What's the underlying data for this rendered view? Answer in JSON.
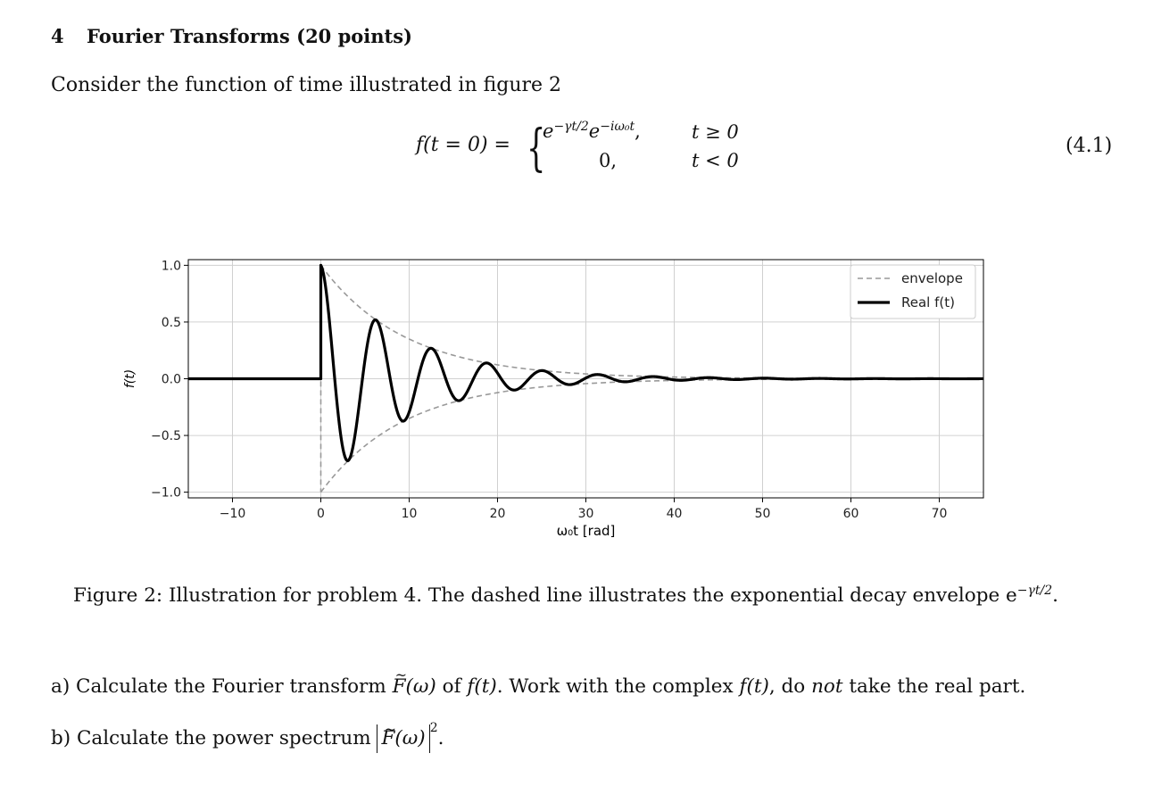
{
  "section": {
    "number": "4",
    "title": "Fourier Transforms (20 points)"
  },
  "intro": "Consider the function of time illustrated in figure 2",
  "equation": {
    "lhs": "f(t = 0) =",
    "case1_expr": "e",
    "case1_exp1": "−γt/2",
    "case1_mid": "e",
    "case1_exp2": "−iω₀t",
    "case1_tail": ",",
    "case1_cond": "t ≥ 0",
    "case2_expr": "0,",
    "case2_cond": "t < 0",
    "number": "(4.1)"
  },
  "caption": {
    "text": "Figure 2: Illustration for problem 4. The dashed line illustrates the exponential decay envelope e",
    "exp": "−γt/2",
    "end": "."
  },
  "part_a": {
    "prefix": "a) Calculate the Fourier transform ",
    "F": "F",
    "arg": "(ω)",
    "mid": " of ",
    "f": "f(t)",
    "mid2": ". Work with the complex ",
    "f2": "f(t)",
    "mid3": ", do ",
    "not": "not",
    "suffix": " take the real part."
  },
  "part_b": {
    "prefix": "b) Calculate the power spectrum ",
    "F": "F",
    "arg": "(ω)",
    "exp": "2",
    "suffix": "."
  },
  "chart_data": {
    "type": "line",
    "xlabel": "ω₀t [rad]",
    "ylabel": "f(t)",
    "xlim": [
      -15,
      75
    ],
    "ylim": [
      -1.05,
      1.05
    ],
    "xticks": [
      -10,
      0,
      10,
      20,
      30,
      40,
      50,
      60,
      70
    ],
    "yticks": [
      -1.0,
      -0.5,
      0.0,
      0.5,
      1.0
    ],
    "xtick_labels": [
      "−10",
      "0",
      "10",
      "20",
      "30",
      "40",
      "50",
      "60",
      "70"
    ],
    "ytick_labels": [
      "−1.0",
      "−0.5",
      "0.0",
      "0.5",
      "1.0"
    ],
    "grid": true,
    "legend_position": "top-right",
    "gamma_over_omega0": 0.105,
    "series": [
      {
        "name": "envelope",
        "style": "dashed",
        "color": "#999999",
        "description": "±exp(−γt/2) for t ≥ 0"
      },
      {
        "name": "Real f(t)",
        "style": "solid",
        "color": "#000000",
        "description": "exp(−γt/2)·cos(ω₀t) for t ≥ 0, 0 for t < 0"
      }
    ],
    "legend": [
      "envelope",
      "Real f(t)"
    ]
  }
}
